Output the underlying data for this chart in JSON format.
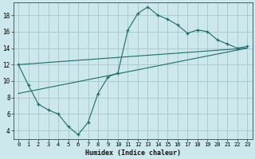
{
  "xlabel": "Humidex (Indice chaleur)",
  "ylabel": "",
  "xlim": [
    -0.5,
    23.5
  ],
  "ylim": [
    3.0,
    19.5
  ],
  "xticks": [
    0,
    1,
    2,
    3,
    4,
    5,
    6,
    7,
    8,
    9,
    10,
    11,
    12,
    13,
    14,
    15,
    16,
    17,
    18,
    19,
    20,
    21,
    22,
    23
  ],
  "yticks": [
    4,
    6,
    8,
    10,
    12,
    14,
    16,
    18
  ],
  "bg_color": "#cce8ec",
  "grid_color": "#aacccc",
  "line_color": "#1e6b6b",
  "line1": {
    "x": [
      0,
      1,
      2,
      3,
      4,
      5,
      6,
      7,
      8,
      9,
      10,
      11,
      12,
      13,
      14,
      15,
      16,
      17,
      18,
      19,
      20,
      21,
      22,
      23
    ],
    "y": [
      12,
      9.5,
      7.2,
      6.5,
      6.0,
      4.5,
      3.5,
      5.0,
      8.5,
      10.5,
      11.0,
      16.2,
      18.2,
      19.0,
      18.0,
      17.5,
      16.8,
      15.8,
      16.2,
      16.0,
      15.0,
      14.5,
      14.0,
      14.2
    ]
  },
  "line2_x": [
    0,
    23
  ],
  "line2_y": [
    8.5,
    14.0
  ],
  "line3_x": [
    0,
    23
  ],
  "line3_y": [
    12.0,
    14.0
  ]
}
